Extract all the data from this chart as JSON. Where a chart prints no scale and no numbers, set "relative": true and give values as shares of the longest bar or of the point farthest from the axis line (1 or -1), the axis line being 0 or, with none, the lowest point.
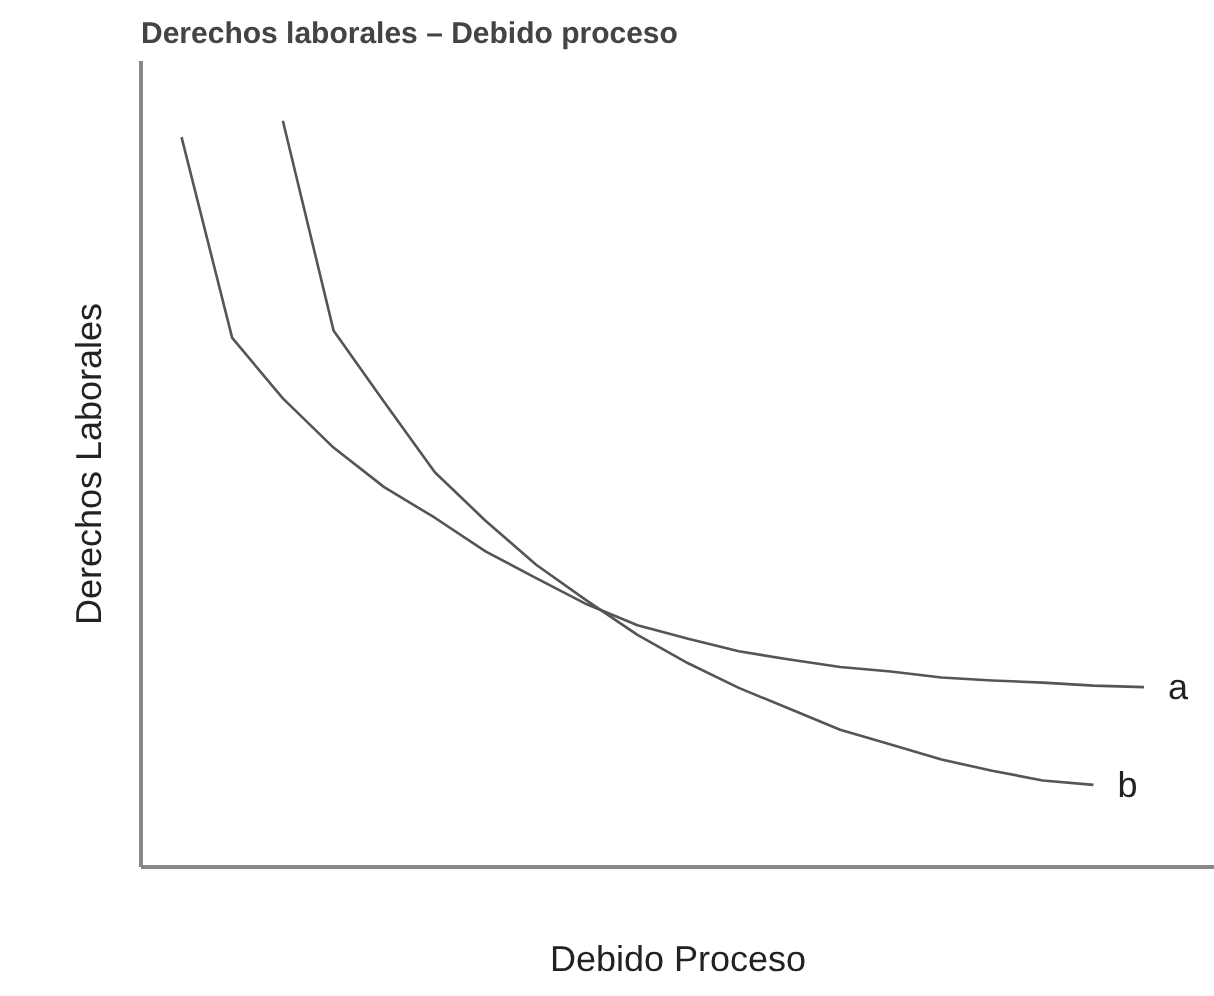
{
  "chart_data": {
    "type": "line",
    "title": "Derechos laborales – Debido proceso",
    "xlabel": "Debido Proceso",
    "ylabel": "Derechos Laborales",
    "relative": true,
    "grid": false,
    "marker": "none",
    "line_style": "solid",
    "categories": [
      null,
      null,
      null,
      null,
      null,
      null,
      null,
      null,
      null,
      null,
      null,
      null,
      null,
      null,
      null,
      null,
      null,
      null,
      null,
      null
    ],
    "series": [
      {
        "name": "a",
        "color": "#555555",
        "values": [
          0.978,
          0.709,
          0.628,
          0.562,
          0.509,
          0.468,
          0.423,
          0.387,
          0.352,
          0.324,
          0.306,
          0.289,
          0.278,
          0.268,
          0.262,
          0.254,
          0.25,
          0.247,
          0.243,
          0.241
        ]
      },
      {
        "name": "b",
        "color": "#555555",
        "values": [
          null,
          null,
          1.0,
          0.719,
          0.623,
          0.529,
          0.464,
          0.405,
          0.357,
          0.311,
          0.273,
          0.24,
          0.212,
          0.184,
          0.164,
          0.144,
          0.129,
          0.116,
          0.11,
          null
        ]
      }
    ]
  }
}
